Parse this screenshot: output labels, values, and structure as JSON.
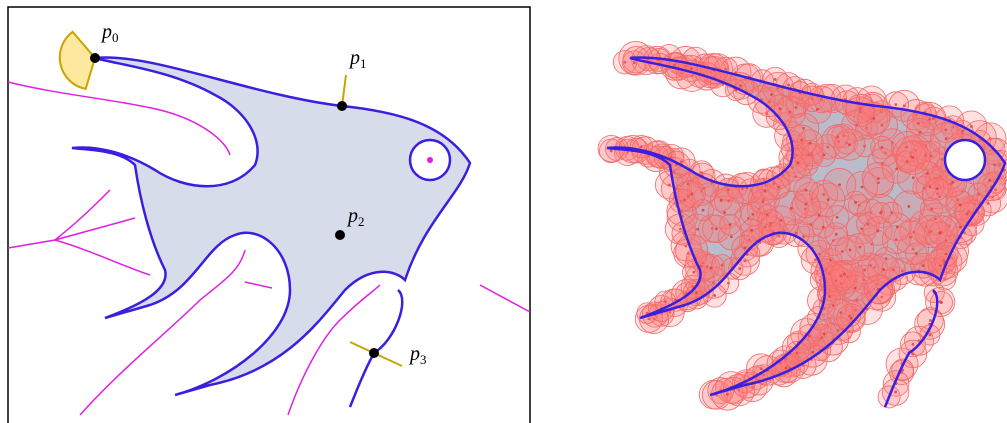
{
  "points": [
    {
      "letter": "p",
      "sub": "0"
    },
    {
      "letter": "p",
      "sub": "1"
    },
    {
      "letter": "p",
      "sub": "2"
    },
    {
      "letter": "p",
      "sub": "3"
    }
  ]
}
